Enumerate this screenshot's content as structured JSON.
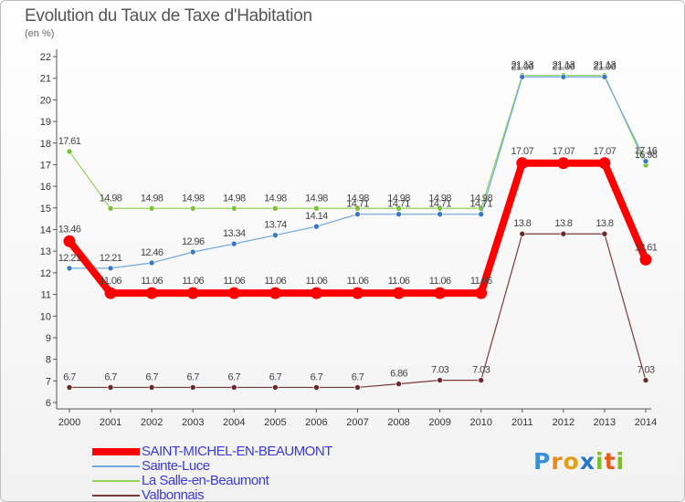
{
  "header": {
    "title": "Evolution du Taux de Taxe d'Habitation",
    "subtitle": "(en %)"
  },
  "logo": {
    "text": "Proxiti"
  },
  "chart_data": {
    "type": "line",
    "x": [
      "2000",
      "2001",
      "2002",
      "2003",
      "2004",
      "2005",
      "2006",
      "2007",
      "2008",
      "2009",
      "2010",
      "2011",
      "2012",
      "2013",
      "2014"
    ],
    "ylim": [
      6,
      22
    ],
    "yticks": [
      6,
      7,
      8,
      9,
      10,
      11,
      12,
      13,
      14,
      15,
      16,
      17,
      18,
      19,
      20,
      21,
      22
    ],
    "grid": false,
    "legend_position": "bottom-left",
    "series": [
      {
        "name": "SAINT-MICHEL-EN-BEAUMONT",
        "color": "#ff0000",
        "values": [
          13.46,
          11.06,
          11.06,
          11.06,
          11.06,
          11.06,
          11.06,
          11.06,
          11.06,
          11.06,
          11.06,
          17.07,
          17.07,
          17.07,
          12.61
        ],
        "labels": [
          "13.46",
          "11.06",
          "11.06",
          "11.06",
          "11.06",
          "11.06",
          "11.06",
          "11.06",
          "11.06",
          "11.06",
          "11.06",
          "17.07",
          "17.07",
          "17.07",
          "12.61"
        ]
      },
      {
        "name": "Sainte-Luce",
        "color": "#6fa8dc",
        "values": [
          12.21,
          12.21,
          12.46,
          12.96,
          13.34,
          13.74,
          14.14,
          14.71,
          14.71,
          14.71,
          14.71,
          21.06,
          21.06,
          21.06,
          17.16
        ],
        "labels": [
          "12.21",
          "12.21",
          "12.46",
          "12.96",
          "13.34",
          "13.74",
          "14.14",
          "14.71",
          "14.71",
          "14.71",
          "14.71",
          "21.06",
          "21.06",
          "21.06",
          "17.16"
        ]
      },
      {
        "name": "La Salle-en-Beaumont",
        "color": "#93d35a",
        "values": [
          17.61,
          14.98,
          14.98,
          14.98,
          14.98,
          14.98,
          14.98,
          14.98,
          14.98,
          14.98,
          14.98,
          21.13,
          21.13,
          21.13,
          16.98
        ],
        "labels": [
          "17.61",
          "14.98",
          "14.98",
          "14.98",
          "14.98",
          "14.98",
          "14.98",
          "14.98",
          "14.98",
          "14.98",
          "14.98",
          "21.13",
          "21.13",
          "21.13",
          "16.98"
        ]
      },
      {
        "name": "Valbonnais",
        "color": "#7a3a3a",
        "values": [
          6.7,
          6.7,
          6.7,
          6.7,
          6.7,
          6.7,
          6.7,
          6.7,
          6.86,
          7.03,
          7.03,
          13.8,
          13.8,
          13.8,
          7.03
        ],
        "labels": [
          "6.7",
          "6.7",
          "6.7",
          "6.7",
          "6.7",
          "6.7",
          "6.7",
          "6.7",
          "6.86",
          "7.03",
          "7.03",
          "13.8",
          "13.8",
          "13.8",
          "7.03"
        ]
      }
    ]
  }
}
